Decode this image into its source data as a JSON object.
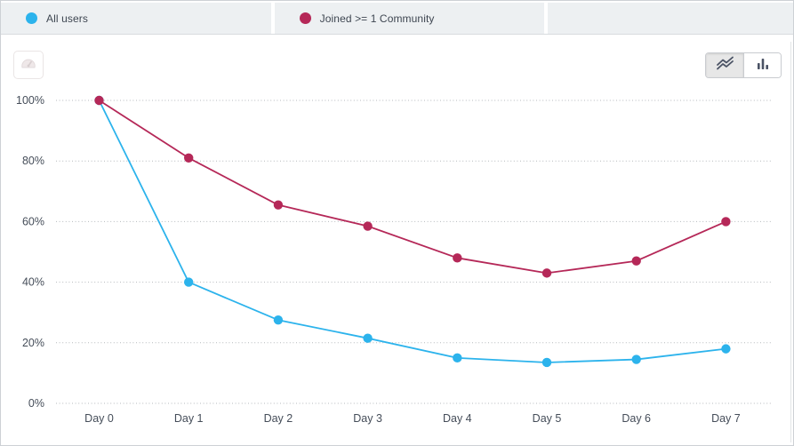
{
  "legend": {
    "tabs": [
      {
        "label": "All users",
        "color": "#2cb3ec"
      },
      {
        "label": "Joined >= 1 Community",
        "color": "#b52858"
      },
      {
        "label": ""
      }
    ]
  },
  "toolbar": {
    "gauge_icon": "gauge-icon",
    "line_view_icon": "line-chart-icon",
    "bar_view_icon": "bar-chart-icon",
    "active_view": "line"
  },
  "chart_data": {
    "type": "line",
    "x": [
      "Day 0",
      "Day 1",
      "Day 2",
      "Day 3",
      "Day 4",
      "Day 5",
      "Day 6",
      "Day 7"
    ],
    "series": [
      {
        "name": "All users",
        "color": "#2cb3ec",
        "values": [
          100,
          40,
          27.5,
          21.5,
          15,
          13.5,
          14.5,
          18
        ]
      },
      {
        "name": "Joined >= 1 Community",
        "color": "#b52858",
        "values": [
          100,
          81,
          65.5,
          58.5,
          48,
          43,
          47,
          60
        ]
      }
    ],
    "y_tick_labels": [
      "0%",
      "20%",
      "40%",
      "60%",
      "80%",
      "100%"
    ],
    "ylim": [
      0,
      100
    ],
    "grid": "horizontal-dotted",
    "grid_color": "#b4b8bc",
    "axis_text_color": "#454d59",
    "legend_position": "top-tabs"
  }
}
